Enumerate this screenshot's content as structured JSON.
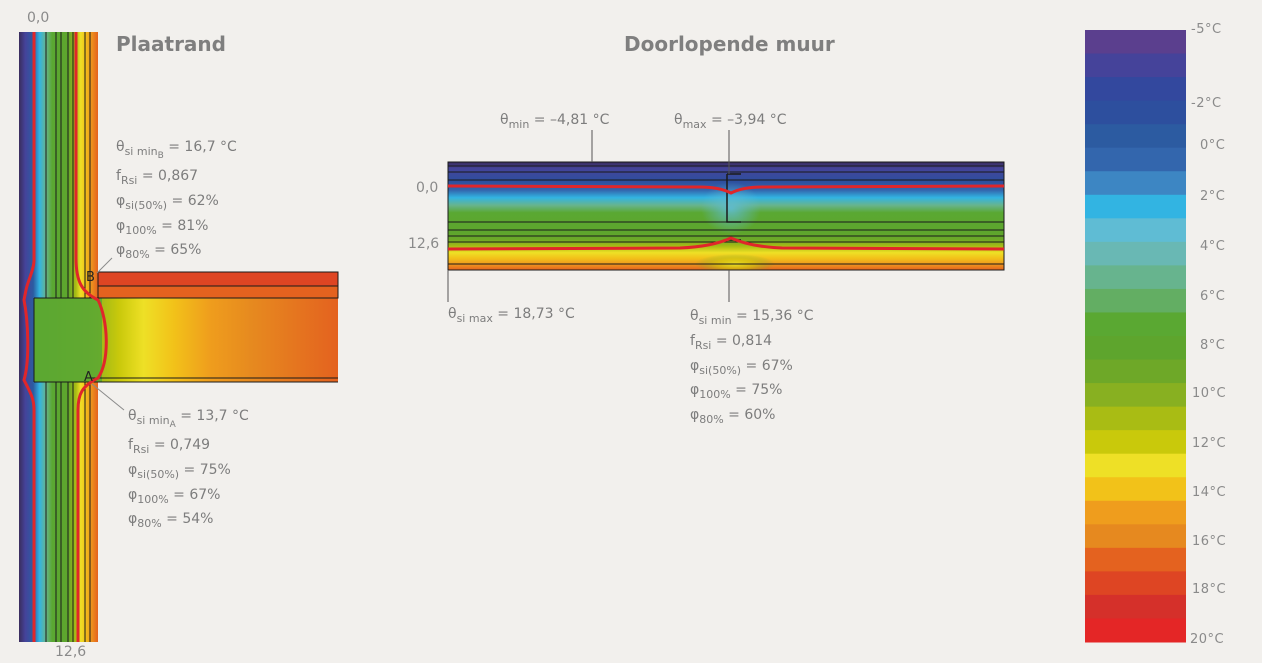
{
  "colors": {
    "background": "#f2f0ed",
    "isotherm": "#e0262a",
    "scale": [
      "#5b3f8e",
      "#45439a",
      "#33489e",
      "#2d4f9e",
      "#2c5ba1",
      "#3366ad",
      "#3d86c3",
      "#32b4e2",
      "#5fbcd4",
      "#69b8b4",
      "#67b48e",
      "#63ae63",
      "#5aa832",
      "#5ea52d",
      "#6ea828",
      "#88b021",
      "#a9bc14",
      "#c9c90b",
      "#eee026",
      "#f2c219",
      "#ef9d1d",
      "#e6891f",
      "#e4621f",
      "#de4523",
      "#d5302a",
      "#e42626"
    ]
  },
  "plaatrand": {
    "title": "Plaatrand",
    "top_label": "0,0",
    "bottom_label": "12,6",
    "point_b": "B",
    "point_a": "A",
    "annot_b": {
      "theta_sym": "θ",
      "theta_sub1": "si min",
      "theta_sub2": "B",
      "theta_val": " = 16,7 °C",
      "f_sym": "f",
      "f_sub": "Rsi",
      "f_val": " = 0,867",
      "phi1_sym": "φ",
      "phi1_sub": "si(50%)",
      "phi1_val": " = 62%",
      "phi2_sym": "φ",
      "phi2_sub": "100%",
      "phi2_val": " = 81%",
      "phi3_sym": "φ",
      "phi3_sub": "80%",
      "phi3_val": " = 65%"
    },
    "annot_a": {
      "theta_sym": "θ",
      "theta_sub1": "si min",
      "theta_sub2": "A",
      "theta_val": " = 13,7 °C",
      "f_sym": "f",
      "f_sub": "Rsi",
      "f_val": " = 0,749",
      "phi1_sym": "φ",
      "phi1_sub": "si(50%)",
      "phi1_val": " = 75%",
      "phi2_sym": "φ",
      "phi2_sub": "100%",
      "phi2_val": " = 67%",
      "phi3_sym": "φ",
      "phi3_sub": "80%",
      "phi3_val": " = 54%"
    }
  },
  "doorlopend": {
    "title": "Doorlopende muur",
    "label_00": "0,0",
    "label_126": "12,6",
    "theta_min": {
      "sym": "θ",
      "sub": "min",
      "val": " = –4,81 °C"
    },
    "theta_max": {
      "sym": "θ",
      "sub": "max",
      "val": " = –3,94 °C"
    },
    "theta_si_max": {
      "sym": "θ",
      "sub": "si max",
      "val": " = 18,73 °C"
    },
    "annot": {
      "theta_sym": "θ",
      "theta_sub": "si min",
      "theta_val": " = 15,36 °C",
      "f_sym": "f",
      "f_sub": "Rsi",
      "f_val": " = 0,814",
      "phi1_sym": "φ",
      "phi1_sub": "si(50%)",
      "phi1_val": " = 67%",
      "phi2_sym": "φ",
      "phi2_sub": "100%",
      "phi2_val": " = 75%",
      "phi3_sym": "φ",
      "phi3_sub": "80%",
      "phi3_val": " = 60%"
    }
  },
  "scale": {
    "labels": [
      "-5°C",
      "-2°C",
      "0°C",
      "2°C",
      "4°C",
      "6°C",
      "8°C",
      "10°C",
      "12°C",
      "14°C",
      "16°C",
      "18°C",
      "20°C"
    ]
  }
}
